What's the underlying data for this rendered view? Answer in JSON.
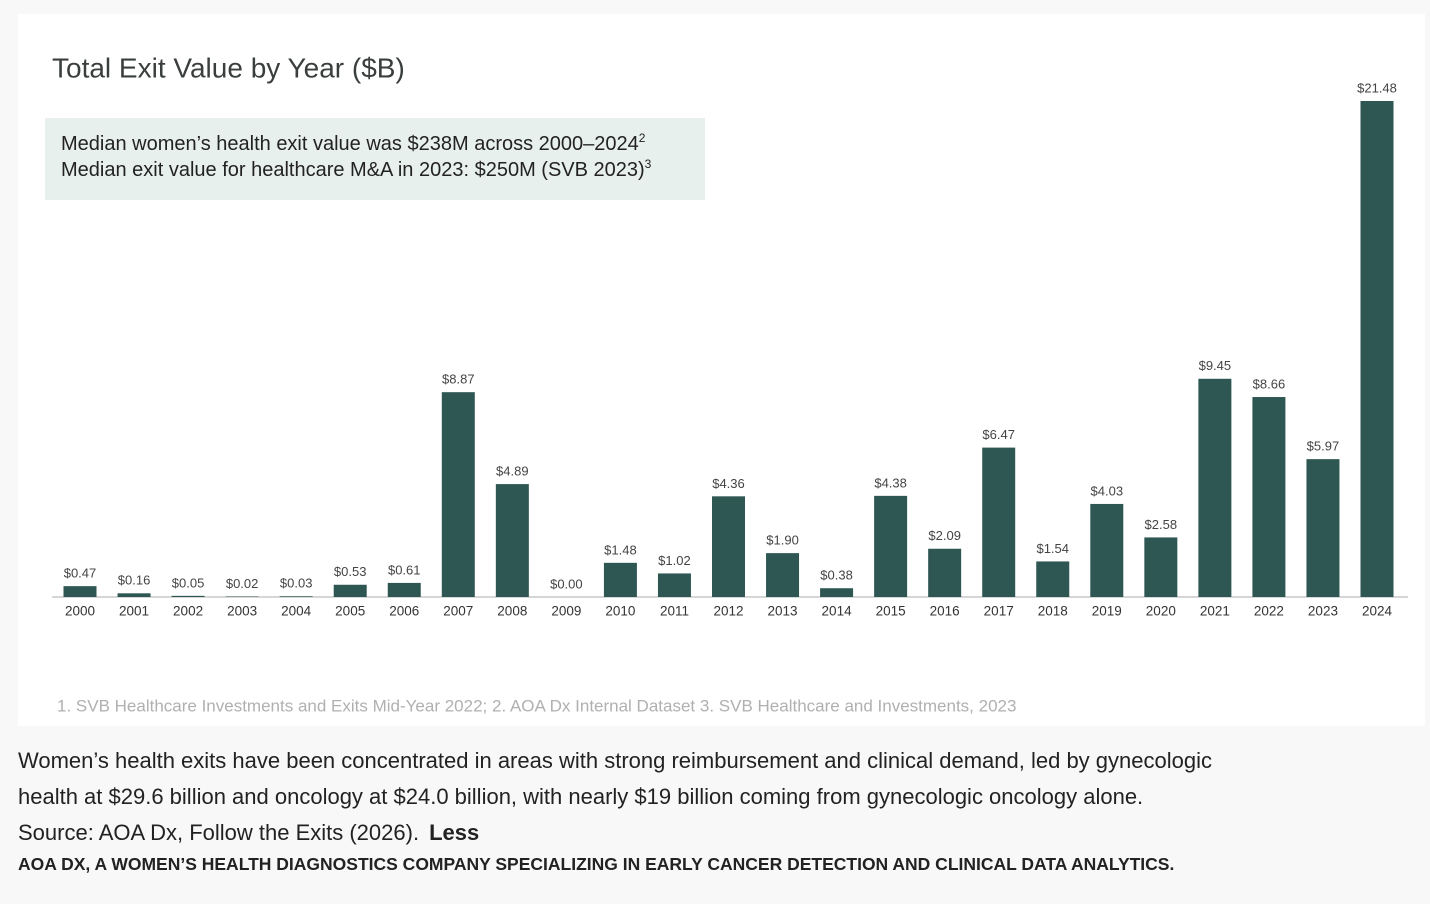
{
  "chart_data": {
    "type": "bar",
    "title": "Total Exit Value by Year ($B)",
    "annotations": [
      {
        "text": "Median women’s health exit value was $238M across 2000–2024",
        "note": "2"
      },
      {
        "text": "Median exit value for healthcare M&A in 2023: $250M (SVB 2023)",
        "note": "3"
      }
    ],
    "categories": [
      "2000",
      "2001",
      "2002",
      "2003",
      "2004",
      "2005",
      "2006",
      "2007",
      "2008",
      "2009",
      "2010",
      "2011",
      "2012",
      "2013",
      "2014",
      "2015",
      "2016",
      "2017",
      "2018",
      "2019",
      "2020",
      "2021",
      "2022",
      "2023",
      "2024"
    ],
    "values": [
      0.47,
      0.16,
      0.05,
      0.02,
      0.03,
      0.53,
      0.61,
      8.87,
      4.89,
      0.0,
      1.48,
      1.02,
      4.36,
      1.9,
      0.38,
      4.38,
      2.09,
      6.47,
      1.54,
      4.03,
      2.58,
      9.45,
      8.66,
      5.97,
      21.48
    ],
    "value_labels": [
      "$0.47",
      "$0.16",
      "$0.05",
      "$0.02",
      "$0.03",
      "$0.53",
      "$0.61",
      "$8.87",
      "$4.89",
      "$0.00",
      "$1.48",
      "$1.02",
      "$4.36",
      "$1.90",
      "$0.38",
      "$4.38",
      "$2.09",
      "$6.47",
      "$1.54",
      "$4.03",
      "$2.58",
      "$9.45",
      "$8.66",
      "$5.97",
      "$21.48"
    ],
    "color": "#2e5753",
    "footnote": "1. SVB Healthcare Investments and Exits Mid-Year 2022; 2. AOA Dx Internal Dataset 3. SVB Healthcare and Investments, 2023"
  },
  "caption": {
    "lines": [
      "Women’s health exits have been concentrated in areas with strong reimbursement and clinical demand, led by gynecologic",
      "health at $29.6 billion and oncology at $24.0 billion, with nearly $19 billion coming from gynecologic oncology alone.",
      "Source: AOA Dx, Follow the Exits (2026)."
    ],
    "toggle": "Less"
  },
  "credit": "AOA DX, A WOMEN’S HEALTH DIAGNOSTICS COMPANY SPECIALIZING IN EARLY CANCER DETECTION AND CLINICAL DATA ANALYTICS."
}
